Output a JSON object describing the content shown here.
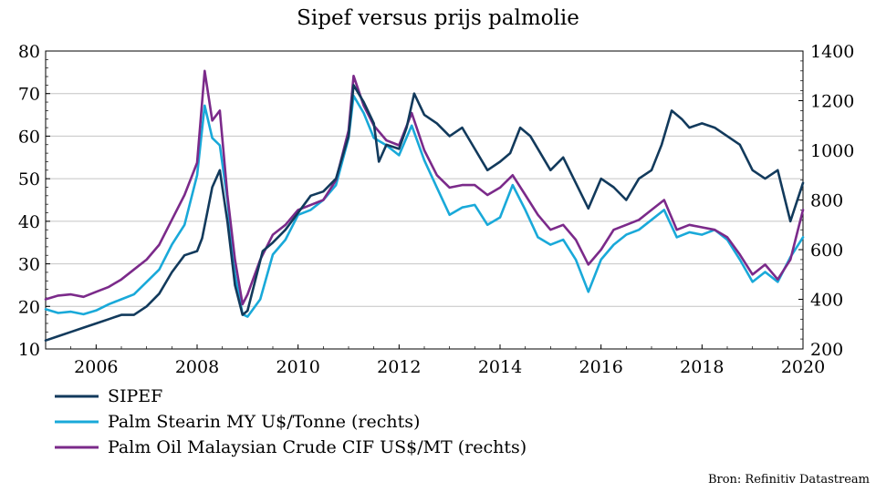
{
  "chart_data": {
    "type": "line",
    "title": "Sipef versus prijs palmolie",
    "source": "Bron: Refinitiv Datastream",
    "x_ticks": [
      "2006",
      "2008",
      "2010",
      "2012",
      "2014",
      "2016",
      "2018",
      "2020"
    ],
    "xlim": [
      2005.0,
      2020.0
    ],
    "y_left": {
      "ticks": [
        "10",
        "20",
        "30",
        "40",
        "50",
        "60",
        "70",
        "80"
      ],
      "lim": [
        10,
        80
      ]
    },
    "y_right": {
      "ticks": [
        "200",
        "400",
        "600",
        "800",
        "1000",
        "1200",
        "1400"
      ],
      "lim": [
        200,
        1400
      ]
    },
    "grid": true,
    "legend_position": "bottom",
    "series": [
      {
        "name": "SIPEF",
        "axis": "left",
        "color": "#123a5c",
        "x": [
          2005.0,
          2005.25,
          2005.5,
          2005.75,
          2006.0,
          2006.25,
          2006.5,
          2006.75,
          2007.0,
          2007.25,
          2007.5,
          2007.75,
          2008.0,
          2008.1,
          2008.2,
          2008.3,
          2008.45,
          2008.6,
          2008.75,
          2008.9,
          2009.0,
          2009.15,
          2009.3,
          2009.5,
          2009.75,
          2010.0,
          2010.25,
          2010.5,
          2010.75,
          2011.0,
          2011.1,
          2011.3,
          2011.5,
          2011.6,
          2011.75,
          2012.0,
          2012.15,
          2012.3,
          2012.5,
          2012.75,
          2013.0,
          2013.25,
          2013.5,
          2013.75,
          2014.0,
          2014.2,
          2014.4,
          2014.6,
          2014.75,
          2015.0,
          2015.25,
          2015.5,
          2015.75,
          2016.0,
          2016.25,
          2016.5,
          2016.75,
          2017.0,
          2017.2,
          2017.4,
          2017.6,
          2017.75,
          2018.0,
          2018.25,
          2018.5,
          2018.75,
          2019.0,
          2019.25,
          2019.5,
          2019.75,
          2020.0
        ],
        "values": [
          12,
          13,
          14,
          15,
          16,
          17,
          18,
          18,
          20,
          23,
          28,
          32,
          33,
          36,
          42,
          48,
          52,
          40,
          25,
          18,
          19,
          26,
          33,
          35,
          38,
          42,
          46,
          47,
          50,
          60,
          72,
          68,
          63,
          54,
          58,
          57,
          62,
          70,
          65,
          63,
          60,
          62,
          57,
          52,
          54,
          56,
          62,
          60,
          57,
          52,
          55,
          49,
          43,
          50,
          48,
          45,
          50,
          52,
          58,
          66,
          64,
          62,
          63,
          62,
          60,
          58,
          52,
          50,
          52,
          40,
          49
        ]
      },
      {
        "name": "Palm Stearin MY U$/Tonne (rechts)",
        "axis": "right",
        "color": "#19a9d9",
        "x": [
          2005.0,
          2005.25,
          2005.5,
          2005.75,
          2006.0,
          2006.25,
          2006.5,
          2006.75,
          2007.0,
          2007.25,
          2007.5,
          2007.75,
          2008.0,
          2008.15,
          2008.3,
          2008.45,
          2008.6,
          2008.75,
          2008.9,
          2009.0,
          2009.25,
          2009.5,
          2009.75,
          2010.0,
          2010.25,
          2010.5,
          2010.75,
          2011.0,
          2011.1,
          2011.3,
          2011.5,
          2011.75,
          2012.0,
          2012.25,
          2012.5,
          2012.75,
          2013.0,
          2013.25,
          2013.5,
          2013.75,
          2014.0,
          2014.25,
          2014.5,
          2014.75,
          2015.0,
          2015.25,
          2015.5,
          2015.75,
          2016.0,
          2016.25,
          2016.5,
          2016.75,
          2017.0,
          2017.25,
          2017.5,
          2017.75,
          2018.0,
          2018.25,
          2018.5,
          2018.75,
          2019.0,
          2019.25,
          2019.5,
          2019.75,
          2020.0
        ],
        "values": [
          360,
          345,
          350,
          340,
          355,
          380,
          400,
          420,
          470,
          520,
          620,
          700,
          900,
          1180,
          1050,
          1020,
          800,
          500,
          340,
          330,
          400,
          580,
          640,
          740,
          760,
          800,
          860,
          1050,
          1220,
          1150,
          1050,
          1020,
          980,
          1100,
          960,
          850,
          740,
          770,
          780,
          700,
          730,
          860,
          760,
          650,
          620,
          640,
          560,
          430,
          560,
          620,
          660,
          680,
          720,
          760,
          650,
          670,
          660,
          680,
          640,
          560,
          470,
          510,
          470,
          570,
          650
        ]
      },
      {
        "name": "Palm Oil Malaysian Crude CIF US$/MT (rechts)",
        "axis": "right",
        "color": "#7b2a8a",
        "x": [
          2005.0,
          2005.25,
          2005.5,
          2005.75,
          2006.0,
          2006.25,
          2006.5,
          2006.75,
          2007.0,
          2007.25,
          2007.5,
          2007.75,
          2008.0,
          2008.15,
          2008.3,
          2008.45,
          2008.6,
          2008.75,
          2008.9,
          2009.0,
          2009.25,
          2009.5,
          2009.75,
          2010.0,
          2010.25,
          2010.5,
          2010.75,
          2011.0,
          2011.1,
          2011.3,
          2011.5,
          2011.75,
          2012.0,
          2012.25,
          2012.5,
          2012.75,
          2013.0,
          2013.25,
          2013.5,
          2013.75,
          2014.0,
          2014.25,
          2014.5,
          2014.75,
          2015.0,
          2015.25,
          2015.5,
          2015.75,
          2016.0,
          2016.25,
          2016.5,
          2016.75,
          2017.0,
          2017.25,
          2017.5,
          2017.75,
          2018.0,
          2018.25,
          2018.5,
          2018.75,
          2019.0,
          2019.25,
          2019.5,
          2019.75,
          2020.0
        ],
        "values": [
          400,
          415,
          420,
          410,
          430,
          450,
          480,
          520,
          560,
          620,
          720,
          820,
          950,
          1320,
          1120,
          1160,
          820,
          560,
          380,
          420,
          560,
          660,
          700,
          760,
          780,
          800,
          880,
          1080,
          1300,
          1180,
          1100,
          1040,
          1020,
          1150,
          1000,
          900,
          850,
          860,
          860,
          820,
          850,
          900,
          820,
          740,
          680,
          700,
          640,
          540,
          600,
          680,
          700,
          720,
          760,
          800,
          680,
          700,
          690,
          680,
          650,
          580,
          500,
          540,
          480,
          560,
          760
        ]
      }
    ]
  }
}
